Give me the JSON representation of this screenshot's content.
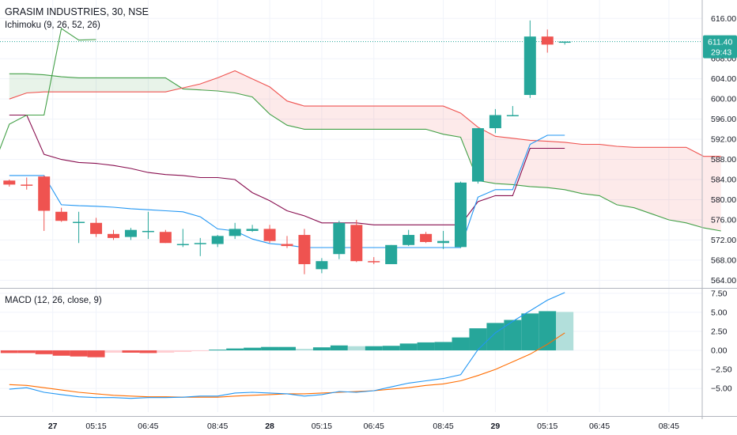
{
  "header": {
    "symbol": "GRASIM INDUSTRIES, 30, NSE",
    "ichimoku_label": "Ichimoku (9, 26, 52, 26)",
    "macd_label": "MACD (12, 26, close, 9)"
  },
  "colors": {
    "up": "#26a69a",
    "down": "#ef5350",
    "up_faded": "#b2dfdb",
    "down_faded": "#ffcdd2",
    "conversion_line": "#2196f3",
    "base_line": "#880e4f",
    "lagging_span": "#43a047",
    "lead_a": "#43a047",
    "lead_b": "#ef5350",
    "macd_line": "#2196f3",
    "signal_line": "#ff6d00",
    "price_tag": "#26a69a",
    "grid": "#f0f3fa",
    "axis_text": "#131722"
  },
  "price_axis": {
    "ticks": [
      "616.00",
      "612.00",
      "608.00",
      "604.00",
      "600.00",
      "596.00",
      "592.00",
      "588.00",
      "584.00",
      "580.00",
      "576.00",
      "572.00",
      "568.00",
      "564.00"
    ],
    "last_price": "611.40",
    "countdown": "29:43"
  },
  "macd_axis": {
    "ticks": [
      "7.50",
      "5.00",
      "2.50",
      "0.00",
      "−2.50",
      "−5.00"
    ]
  },
  "time_axis": {
    "labels": [
      {
        "text": "27",
        "bar": 2.5,
        "bold": true
      },
      {
        "text": "05:15",
        "bar": 5
      },
      {
        "text": "06:45",
        "bar": 8
      },
      {
        "text": "08:45",
        "bar": 12
      },
      {
        "text": "28",
        "bar": 15,
        "bold": true
      },
      {
        "text": "05:15",
        "bar": 18
      },
      {
        "text": "06:45",
        "bar": 21
      },
      {
        "text": "08:45",
        "bar": 25
      },
      {
        "text": "29",
        "bar": 28,
        "bold": true
      },
      {
        "text": "05:15",
        "bar": 31
      },
      {
        "text": "06:45",
        "bar": 34
      },
      {
        "text": "08:45",
        "bar": 38
      }
    ]
  },
  "chart_data": {
    "type": "candlestick",
    "series": [
      {
        "name": "GRASIM INDUSTRIES",
        "ohlc": [
          [
            583.8,
            584.0,
            582.6,
            583.0
          ],
          [
            583.0,
            584.4,
            582.0,
            582.8
          ],
          [
            584.6,
            584.8,
            573.8,
            577.8
          ],
          [
            577.6,
            578.4,
            575.6,
            575.8
          ],
          [
            575.6,
            577.6,
            571.4,
            575.6
          ],
          [
            575.4,
            576.4,
            572.6,
            573.2
          ],
          [
            573.2,
            574.0,
            572.0,
            572.4
          ],
          [
            572.6,
            574.4,
            572.0,
            574.0
          ],
          [
            573.8,
            577.6,
            572.2,
            573.8
          ],
          [
            573.6,
            574.0,
            571.4,
            571.4
          ],
          [
            571.2,
            574.2,
            570.6,
            571.2
          ],
          [
            571.2,
            572.4,
            568.8,
            571.4
          ],
          [
            571.2,
            573.0,
            570.6,
            572.8
          ],
          [
            572.8,
            575.4,
            572.2,
            574.2
          ],
          [
            573.8,
            575.0,
            573.6,
            574.2
          ],
          [
            574.2,
            575.0,
            571.4,
            571.8
          ],
          [
            571.2,
            572.8,
            570.4,
            570.8
          ],
          [
            573.0,
            574.2,
            565.2,
            567.2
          ],
          [
            566.2,
            568.4,
            565.4,
            567.8
          ],
          [
            569.2,
            575.8,
            568.2,
            575.4
          ],
          [
            575.0,
            576.0,
            567.6,
            567.8
          ],
          [
            567.8,
            568.6,
            567.2,
            567.6
          ],
          [
            567.2,
            571.0,
            567.2,
            571.0
          ],
          [
            571.0,
            574.0,
            570.8,
            573.0
          ],
          [
            573.2,
            573.6,
            571.4,
            571.6
          ],
          [
            571.4,
            573.8,
            570.2,
            571.8
          ],
          [
            570.6,
            583.6,
            570.4,
            583.4
          ],
          [
            583.6,
            594.2,
            583.2,
            594.2
          ],
          [
            594.2,
            598.0,
            593.2,
            596.8
          ],
          [
            596.8,
            598.6,
            596.6,
            596.8
          ],
          [
            600.8,
            615.6,
            600.2,
            612.4
          ],
          [
            612.4,
            613.8,
            609.2,
            610.8
          ],
          [
            611.2,
            611.2,
            610.8,
            611.4
          ]
        ]
      }
    ],
    "ichimoku": {
      "conversion_line": {
        "x": [
          0,
          1,
          2,
          3,
          4,
          5,
          6,
          7,
          8,
          9,
          10,
          11,
          12,
          13,
          14,
          15,
          16,
          17,
          18,
          19,
          20,
          21,
          22,
          23,
          24,
          25,
          26,
          27,
          28,
          29,
          30,
          31,
          32
        ],
        "y": [
          584.8,
          584.8,
          584.8,
          579.0,
          578.8,
          578.7,
          578.5,
          578.2,
          578.0,
          577.8,
          577.6,
          576.6,
          574.2,
          573.8,
          572.2,
          571.3,
          571.0,
          570.5,
          570.5,
          570.5,
          570.5,
          570.5,
          570.5,
          570.5,
          570.5,
          570.5,
          570.5,
          580.5,
          582.0,
          582.0,
          591.0,
          592.8,
          592.8
        ]
      },
      "base_line": {
        "x": [
          0,
          1,
          2,
          3,
          4,
          5,
          6,
          7,
          8,
          9,
          10,
          11,
          12,
          13,
          14,
          15,
          16,
          17,
          18,
          19,
          20,
          21,
          22,
          23,
          24,
          25,
          26,
          27,
          28,
          29,
          30,
          31,
          32
        ],
        "y": [
          596.8,
          596.8,
          589.0,
          588.0,
          587.4,
          587.2,
          586.8,
          586.2,
          585.4,
          585.0,
          584.8,
          584.4,
          584.4,
          584.0,
          581.4,
          579.8,
          577.8,
          576.8,
          575.4,
          575.4,
          575.4,
          575.0,
          575.0,
          575.0,
          575.0,
          575.0,
          575.0,
          579.6,
          580.8,
          580.8,
          590.2,
          590.2,
          590.2
        ]
      },
      "lagging_span": {
        "x": [
          -1,
          0,
          1,
          2,
          3,
          4,
          5
        ],
        "y": [
          586.0,
          595.0,
          596.8,
          596.8,
          614.0,
          611.7,
          611.8
        ]
      },
      "leading_span_a": {
        "x": [
          0,
          1,
          2,
          3,
          4,
          5,
          6,
          7,
          8,
          9,
          10,
          11,
          12,
          13,
          14,
          15,
          16,
          17,
          18,
          19,
          20,
          21,
          22,
          23,
          24,
          25,
          26,
          27,
          28,
          29,
          30,
          31,
          32,
          33,
          34,
          35,
          36,
          37,
          38,
          39,
          40,
          41
        ],
        "y": [
          605.0,
          605.0,
          604.8,
          604.4,
          604.2,
          604.2,
          604.2,
          604.2,
          604.2,
          604.2,
          602.0,
          601.8,
          601.6,
          601.2,
          600.4,
          597.0,
          594.8,
          594.0,
          594.0,
          594.0,
          594.0,
          594.0,
          594.0,
          594.0,
          594.0,
          593.0,
          592.4,
          583.8,
          583.2,
          583.0,
          582.6,
          582.4,
          582.0,
          581.2,
          580.8,
          579.0,
          578.4,
          577.2,
          576.0,
          575.4,
          574.4,
          573.8
        ]
      },
      "leading_span_b": {
        "x": [
          0,
          1,
          2,
          3,
          4,
          5,
          6,
          7,
          8,
          9,
          10,
          11,
          12,
          13,
          14,
          15,
          16,
          17,
          18,
          19,
          20,
          21,
          22,
          23,
          24,
          25,
          26,
          27,
          28,
          29,
          30,
          31,
          32,
          33,
          34,
          35,
          36,
          37,
          38,
          39,
          40,
          41
        ],
        "y": [
          600.0,
          601.2,
          601.4,
          601.4,
          601.4,
          601.4,
          601.4,
          601.4,
          601.4,
          601.4,
          602.2,
          603.0,
          604.2,
          605.6,
          604.0,
          602.4,
          599.6,
          598.6,
          598.6,
          598.6,
          598.6,
          598.6,
          598.6,
          598.6,
          598.6,
          598.6,
          597.2,
          594.4,
          592.6,
          592.2,
          591.8,
          591.6,
          591.4,
          591.0,
          591.0,
          590.6,
          590.4,
          590.4,
          590.4,
          590.4,
          588.6,
          588.6
        ]
      }
    },
    "macd": {
      "histogram": [
        -0.35,
        -0.35,
        -0.5,
        -0.7,
        -0.8,
        -0.9,
        -0.3,
        -0.3,
        -0.35,
        -0.3,
        -0.2,
        -0.1,
        0.1,
        0.25,
        0.35,
        0.45,
        0.45,
        0.2,
        0.4,
        0.65,
        0.55,
        0.55,
        0.6,
        0.9,
        1.05,
        1.1,
        1.7,
        2.9,
        3.6,
        4.0,
        4.85,
        5.15,
        5.05
      ],
      "macd_line": [
        -5.1,
        -4.9,
        -5.5,
        -5.8,
        -6.1,
        -6.2,
        -6.2,
        -6.3,
        -6.2,
        -6.2,
        -6.15,
        -6.0,
        -6.0,
        -5.6,
        -5.5,
        -5.6,
        -5.7,
        -6.0,
        -5.8,
        -5.4,
        -5.5,
        -5.3,
        -4.8,
        -4.3,
        -4.0,
        -3.7,
        -3.2,
        0.1,
        2.3,
        3.8,
        5.2,
        6.6,
        7.6
      ],
      "signal_line": [
        -4.5,
        -4.6,
        -4.9,
        -5.2,
        -5.5,
        -5.7,
        -5.9,
        -6.0,
        -6.1,
        -6.1,
        -6.15,
        -6.15,
        -6.15,
        -6.0,
        -5.9,
        -5.8,
        -5.7,
        -5.7,
        -5.6,
        -5.5,
        -5.4,
        -5.3,
        -5.1,
        -4.9,
        -4.6,
        -4.4,
        -4.0,
        -3.3,
        -2.5,
        -1.5,
        -0.5,
        0.8,
        2.3
      ]
    },
    "price_ylim": [
      562.8,
      618.4
    ],
    "macd_ylim": [
      -8.1,
      8.0
    ],
    "grid": true
  }
}
